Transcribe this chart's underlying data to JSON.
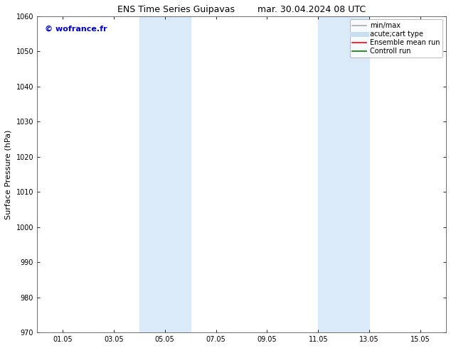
{
  "title_left": "ENS Time Series Guipavas",
  "title_right": "mar. 30.04.2024 08 UTC",
  "ylabel": "Surface Pressure (hPa)",
  "ylim": [
    970,
    1060
  ],
  "yticks": [
    970,
    980,
    990,
    1000,
    1010,
    1020,
    1030,
    1040,
    1050,
    1060
  ],
  "xtick_labels": [
    "01.05",
    "03.05",
    "05.05",
    "07.05",
    "09.05",
    "11.05",
    "13.05",
    "15.05"
  ],
  "xtick_positions": [
    1,
    3,
    5,
    7,
    9,
    11,
    13,
    15
  ],
  "xlim": [
    0,
    16
  ],
  "shaded_bands": [
    {
      "x_start": 4,
      "x_end": 6
    },
    {
      "x_start": 11,
      "x_end": 13
    }
  ],
  "shaded_color": "#daeaf8",
  "watermark_text": "© wofrance.fr",
  "watermark_color": "#0000cc",
  "background_color": "#ffffff",
  "legend_entries": [
    {
      "label": "min/max",
      "color": "#aaaaaa",
      "lw": 1.2
    },
    {
      "label": "acute;cart type",
      "color": "#c8dff0",
      "lw": 5
    },
    {
      "label": "Ensemble mean run",
      "color": "#ff0000",
      "lw": 1.2
    },
    {
      "label": "Controll run",
      "color": "#008000",
      "lw": 1.2
    }
  ],
  "title_fontsize": 9,
  "tick_fontsize": 7,
  "ylabel_fontsize": 8,
  "watermark_fontsize": 8,
  "legend_fontsize": 7
}
